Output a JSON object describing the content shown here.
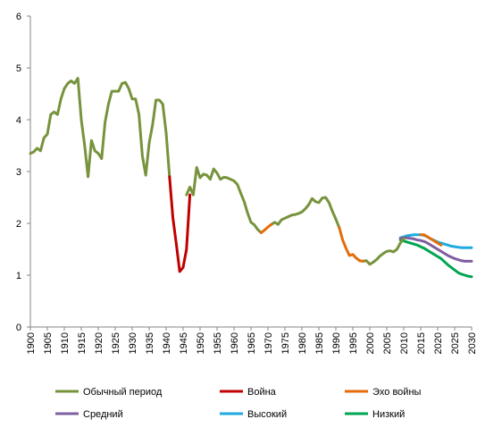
{
  "colors": {
    "normal": "#77933C",
    "war": "#C00000",
    "echo": "#E46C0A",
    "medium": "#7F5FA0",
    "high": "#1FAAE0",
    "low": "#00A651",
    "axis": "#868686"
  },
  "chart_data": {
    "type": "line",
    "xlim": [
      1900,
      2030
    ],
    "ylim": [
      0,
      6
    ],
    "x_ticks": [
      "1900",
      "1905",
      "1910",
      "1915",
      "1920",
      "1925",
      "1930",
      "1935",
      "1940",
      "1945",
      "1950",
      "1955",
      "1960",
      "1965",
      "1970",
      "1975",
      "1980",
      "1985",
      "1990",
      "1995",
      "2000",
      "2005",
      "2010",
      "2015",
      "2020",
      "2025",
      "2030"
    ],
    "y_ticks": [
      "0",
      "1",
      "2",
      "3",
      "4",
      "5",
      "6"
    ],
    "grid": false,
    "legend_position": "bottom",
    "series": [
      {
        "name": "Обычный период",
        "color_key": "normal",
        "segments": [
          [
            [
              1900,
              3.35
            ],
            [
              1901,
              3.38
            ],
            [
              1902,
              3.45
            ],
            [
              1903,
              3.4
            ],
            [
              1904,
              3.65
            ],
            [
              1905,
              3.72
            ],
            [
              1906,
              4.1
            ],
            [
              1907,
              4.15
            ],
            [
              1908,
              4.1
            ],
            [
              1909,
              4.4
            ],
            [
              1910,
              4.6
            ],
            [
              1911,
              4.7
            ],
            [
              1912,
              4.75
            ],
            [
              1913,
              4.7
            ],
            [
              1914,
              4.8
            ],
            [
              1915,
              4.0
            ],
            [
              1916,
              3.5
            ],
            [
              1917,
              2.9
            ],
            [
              1918,
              3.6
            ],
            [
              1919,
              3.4
            ],
            [
              1920,
              3.35
            ],
            [
              1921,
              3.25
            ],
            [
              1922,
              3.95
            ],
            [
              1923,
              4.3
            ],
            [
              1924,
              4.55
            ],
            [
              1925,
              4.55
            ],
            [
              1926,
              4.55
            ],
            [
              1927,
              4.7
            ],
            [
              1928,
              4.72
            ],
            [
              1929,
              4.6
            ],
            [
              1930,
              4.4
            ],
            [
              1931,
              4.4
            ],
            [
              1932,
              4.1
            ],
            [
              1933,
              3.3
            ],
            [
              1934,
              2.93
            ],
            [
              1935,
              3.55
            ],
            [
              1936,
              3.9
            ],
            [
              1937,
              4.38
            ],
            [
              1938,
              4.38
            ],
            [
              1939,
              4.3
            ],
            [
              1940,
              3.75
            ],
            [
              1941,
              2.9
            ]
          ],
          [
            [
              1946,
              2.55
            ],
            [
              1947,
              2.7
            ],
            [
              1948,
              2.55
            ],
            [
              1949,
              3.08
            ],
            [
              1950,
              2.88
            ],
            [
              1951,
              2.95
            ],
            [
              1952,
              2.93
            ],
            [
              1953,
              2.85
            ],
            [
              1954,
              3.05
            ],
            [
              1955,
              2.97
            ],
            [
              1956,
              2.85
            ],
            [
              1957,
              2.89
            ],
            [
              1958,
              2.88
            ],
            [
              1959,
              2.85
            ],
            [
              1960,
              2.82
            ],
            [
              1961,
              2.75
            ],
            [
              1962,
              2.58
            ],
            [
              1963,
              2.42
            ],
            [
              1964,
              2.2
            ],
            [
              1965,
              2.02
            ],
            [
              1966,
              1.97
            ],
            [
              1967,
              1.88
            ],
            [
              1968,
              1.82
            ]
          ],
          [
            [
              1971,
              1.98
            ],
            [
              1972,
              2.02
            ],
            [
              1973,
              1.98
            ],
            [
              1974,
              2.07
            ],
            [
              1975,
              2.1
            ],
            [
              1976,
              2.13
            ],
            [
              1977,
              2.16
            ],
            [
              1978,
              2.17
            ],
            [
              1979,
              2.19
            ],
            [
              1980,
              2.22
            ],
            [
              1981,
              2.28
            ],
            [
              1982,
              2.36
            ],
            [
              1983,
              2.48
            ],
            [
              1984,
              2.42
            ],
            [
              1985,
              2.4
            ],
            [
              1986,
              2.49
            ],
            [
              1987,
              2.5
            ],
            [
              1988,
              2.4
            ],
            [
              1989,
              2.23
            ],
            [
              1990,
              2.08
            ],
            [
              1991,
              1.92
            ]
          ],
          [
            [
              1998,
              1.27
            ],
            [
              1999,
              1.28
            ],
            [
              2000,
              1.21
            ],
            [
              2001,
              1.25
            ],
            [
              2002,
              1.3
            ],
            [
              2003,
              1.37
            ],
            [
              2004,
              1.42
            ],
            [
              2005,
              1.46
            ],
            [
              2006,
              1.47
            ],
            [
              2007,
              1.45
            ],
            [
              2008,
              1.5
            ],
            [
              2009,
              1.62
            ],
            [
              2010,
              1.71
            ]
          ]
        ]
      },
      {
        "name": "Война",
        "color_key": "war",
        "segments": [
          [
            [
              1941,
              2.9
            ],
            [
              1942,
              2.1
            ],
            [
              1943,
              1.6
            ],
            [
              1944,
              1.07
            ],
            [
              1945,
              1.15
            ],
            [
              1946,
              1.5
            ],
            [
              1947,
              2.55
            ]
          ]
        ]
      },
      {
        "name": "Эхо войны",
        "color_key": "echo",
        "segments": [
          [
            [
              1968,
              1.82
            ],
            [
              1969,
              1.87
            ],
            [
              1970,
              1.93
            ],
            [
              1971,
              1.98
            ]
          ],
          [
            [
              1991,
              1.92
            ],
            [
              1992,
              1.68
            ],
            [
              1993,
              1.52
            ],
            [
              1994,
              1.38
            ],
            [
              1995,
              1.4
            ],
            [
              1996,
              1.33
            ],
            [
              1997,
              1.28
            ],
            [
              1998,
              1.27
            ]
          ],
          [
            [
              2015,
              1.78
            ],
            [
              2016,
              1.78
            ],
            [
              2017,
              1.74
            ],
            [
              2018,
              1.7
            ],
            [
              2019,
              1.66
            ],
            [
              2020,
              1.62
            ],
            [
              2021,
              1.58
            ]
          ]
        ]
      },
      {
        "name": "Средний",
        "color_key": "medium",
        "segments": [
          [
            [
              2009,
              1.71
            ],
            [
              2010,
              1.72
            ],
            [
              2011,
              1.72
            ],
            [
              2012,
              1.71
            ],
            [
              2013,
              1.7
            ],
            [
              2014,
              1.68
            ],
            [
              2015,
              1.67
            ],
            [
              2016,
              1.65
            ],
            [
              2017,
              1.62
            ],
            [
              2018,
              1.58
            ],
            [
              2019,
              1.54
            ],
            [
              2020,
              1.5
            ],
            [
              2021,
              1.46
            ],
            [
              2022,
              1.42
            ],
            [
              2023,
              1.38
            ],
            [
              2024,
              1.35
            ],
            [
              2025,
              1.32
            ],
            [
              2026,
              1.3
            ],
            [
              2027,
              1.28
            ],
            [
              2028,
              1.27
            ],
            [
              2029,
              1.27
            ],
            [
              2030,
              1.27
            ]
          ]
        ]
      },
      {
        "name": "Высокий",
        "color_key": "high",
        "segments": [
          [
            [
              2009,
              1.72
            ],
            [
              2010,
              1.74
            ],
            [
              2011,
              1.76
            ],
            [
              2012,
              1.77
            ],
            [
              2013,
              1.78
            ],
            [
              2014,
              1.78
            ],
            [
              2015,
              1.78
            ],
            [
              2016,
              1.77
            ],
            [
              2017,
              1.74
            ],
            [
              2018,
              1.7
            ],
            [
              2019,
              1.67
            ],
            [
              2020,
              1.64
            ],
            [
              2021,
              1.62
            ],
            [
              2022,
              1.6
            ],
            [
              2023,
              1.58
            ],
            [
              2024,
              1.56
            ],
            [
              2025,
              1.55
            ],
            [
              2026,
              1.54
            ],
            [
              2027,
              1.53
            ],
            [
              2028,
              1.53
            ],
            [
              2029,
              1.53
            ],
            [
              2030,
              1.53
            ]
          ]
        ]
      },
      {
        "name": "Низкий",
        "color_key": "low",
        "segments": [
          [
            [
              2009,
              1.68
            ],
            [
              2010,
              1.66
            ],
            [
              2011,
              1.64
            ],
            [
              2012,
              1.62
            ],
            [
              2013,
              1.6
            ],
            [
              2014,
              1.58
            ],
            [
              2015,
              1.55
            ],
            [
              2016,
              1.52
            ],
            [
              2017,
              1.48
            ],
            [
              2018,
              1.44
            ],
            [
              2019,
              1.4
            ],
            [
              2020,
              1.36
            ],
            [
              2021,
              1.32
            ],
            [
              2022,
              1.26
            ],
            [
              2023,
              1.2
            ],
            [
              2024,
              1.15
            ],
            [
              2025,
              1.1
            ],
            [
              2026,
              1.05
            ],
            [
              2027,
              1.02
            ],
            [
              2028,
              1.0
            ],
            [
              2029,
              0.98
            ],
            [
              2030,
              0.97
            ]
          ]
        ]
      }
    ]
  }
}
